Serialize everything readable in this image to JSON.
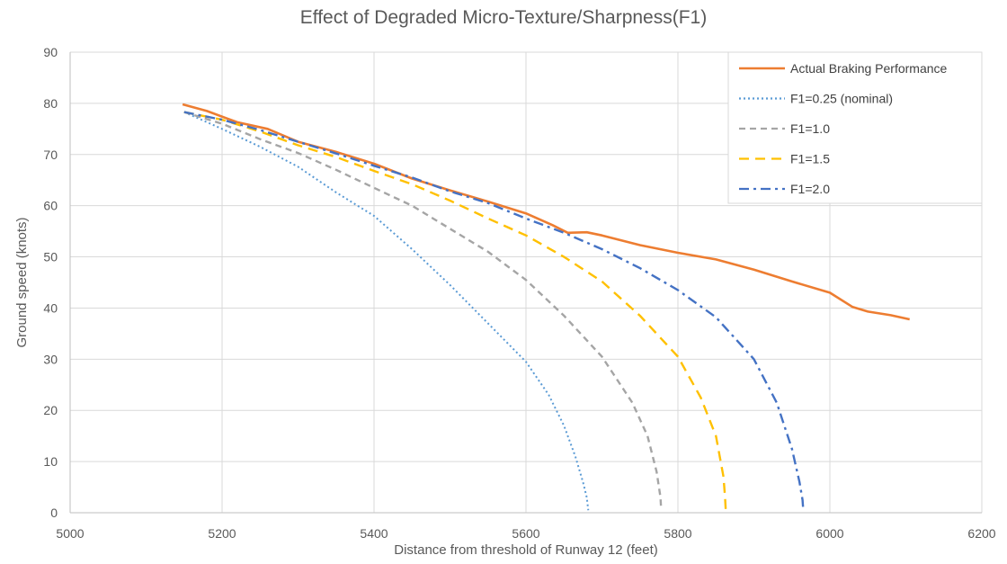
{
  "chart_data": {
    "type": "line",
    "title": "Effect of Degraded Micro-Texture/Sharpness(F1)",
    "xlabel": "Distance from threshold of Runway 12 (feet)",
    "ylabel": "Ground speed (knots)",
    "xlim": [
      5000,
      6200
    ],
    "ylim": [
      0,
      90
    ],
    "xticks": [
      5000,
      5200,
      5400,
      5600,
      5800,
      6000,
      6200
    ],
    "yticks": [
      0,
      10,
      20,
      30,
      40,
      50,
      60,
      70,
      80,
      90
    ],
    "grid": true,
    "legend_position": "top-right",
    "series": [
      {
        "name": "Actual Braking Performance",
        "color": "#ED7D31",
        "dash": "solid",
        "points": [
          [
            5148,
            79.8
          ],
          [
            5180,
            78.5
          ],
          [
            5220,
            76.3
          ],
          [
            5260,
            75.0
          ],
          [
            5300,
            72.5
          ],
          [
            5350,
            70.5
          ],
          [
            5400,
            68.2
          ],
          [
            5450,
            65.3
          ],
          [
            5500,
            63.0
          ],
          [
            5550,
            60.8
          ],
          [
            5600,
            58.5
          ],
          [
            5635,
            56.2
          ],
          [
            5655,
            54.7
          ],
          [
            5680,
            54.8
          ],
          [
            5700,
            54.2
          ],
          [
            5750,
            52.3
          ],
          [
            5800,
            50.8
          ],
          [
            5850,
            49.5
          ],
          [
            5900,
            47.5
          ],
          [
            5950,
            45.2
          ],
          [
            6000,
            43.0
          ],
          [
            6030,
            40.2
          ],
          [
            6050,
            39.3
          ],
          [
            6080,
            38.6
          ],
          [
            6105,
            37.8
          ]
        ]
      },
      {
        "name": "F1=0.25 (nominal)",
        "color": "#5B9BD5",
        "dash": "dotted",
        "points": [
          [
            5150,
            78.3
          ],
          [
            5200,
            75.0
          ],
          [
            5250,
            71.5
          ],
          [
            5300,
            67.6
          ],
          [
            5350,
            62.6
          ],
          [
            5400,
            58.0
          ],
          [
            5450,
            51.5
          ],
          [
            5500,
            44.5
          ],
          [
            5550,
            37.0
          ],
          [
            5600,
            29.5
          ],
          [
            5630,
            23.0
          ],
          [
            5650,
            17.0
          ],
          [
            5665,
            11.0
          ],
          [
            5675,
            6.0
          ],
          [
            5680,
            3.0
          ],
          [
            5682,
            0.5
          ]
        ]
      },
      {
        "name": "F1=1.0",
        "color": "#A5A5A5",
        "dash": "dashed",
        "points": [
          [
            5150,
            78.3
          ],
          [
            5200,
            76.0
          ],
          [
            5250,
            73.0
          ],
          [
            5300,
            70.3
          ],
          [
            5350,
            67.0
          ],
          [
            5400,
            63.5
          ],
          [
            5450,
            60.0
          ],
          [
            5500,
            55.5
          ],
          [
            5550,
            51.0
          ],
          [
            5600,
            45.5
          ],
          [
            5650,
            38.5
          ],
          [
            5700,
            30.5
          ],
          [
            5740,
            21.5
          ],
          [
            5760,
            15.0
          ],
          [
            5772,
            8.0
          ],
          [
            5777,
            3.0
          ],
          [
            5778,
            0.5
          ]
        ]
      },
      {
        "name": "F1=1.5",
        "color": "#FFC000",
        "dash": "dashed-long",
        "points": [
          [
            5150,
            78.3
          ],
          [
            5200,
            76.8
          ],
          [
            5250,
            74.5
          ],
          [
            5300,
            71.8
          ],
          [
            5350,
            69.5
          ],
          [
            5400,
            66.8
          ],
          [
            5450,
            64.2
          ],
          [
            5500,
            61.0
          ],
          [
            5550,
            57.5
          ],
          [
            5600,
            54.2
          ],
          [
            5650,
            50.0
          ],
          [
            5700,
            45.2
          ],
          [
            5750,
            38.5
          ],
          [
            5800,
            30.5
          ],
          [
            5830,
            22.5
          ],
          [
            5850,
            15.0
          ],
          [
            5860,
            7.0
          ],
          [
            5862,
            3.0
          ],
          [
            5863,
            0.5
          ]
        ]
      },
      {
        "name": "F1=2.0",
        "color": "#4472C4",
        "dash": "dash-dot",
        "points": [
          [
            5150,
            78.3
          ],
          [
            5200,
            76.8
          ],
          [
            5250,
            74.8
          ],
          [
            5300,
            72.5
          ],
          [
            5350,
            70.2
          ],
          [
            5400,
            67.8
          ],
          [
            5450,
            65.5
          ],
          [
            5500,
            62.8
          ],
          [
            5550,
            60.5
          ],
          [
            5600,
            57.5
          ],
          [
            5650,
            54.7
          ],
          [
            5700,
            51.5
          ],
          [
            5750,
            47.8
          ],
          [
            5800,
            43.5
          ],
          [
            5850,
            38.2
          ],
          [
            5900,
            30.0
          ],
          [
            5930,
            21.5
          ],
          [
            5950,
            12.5
          ],
          [
            5960,
            6.0
          ],
          [
            5964,
            2.5
          ],
          [
            5965,
            0.5
          ]
        ]
      }
    ]
  }
}
